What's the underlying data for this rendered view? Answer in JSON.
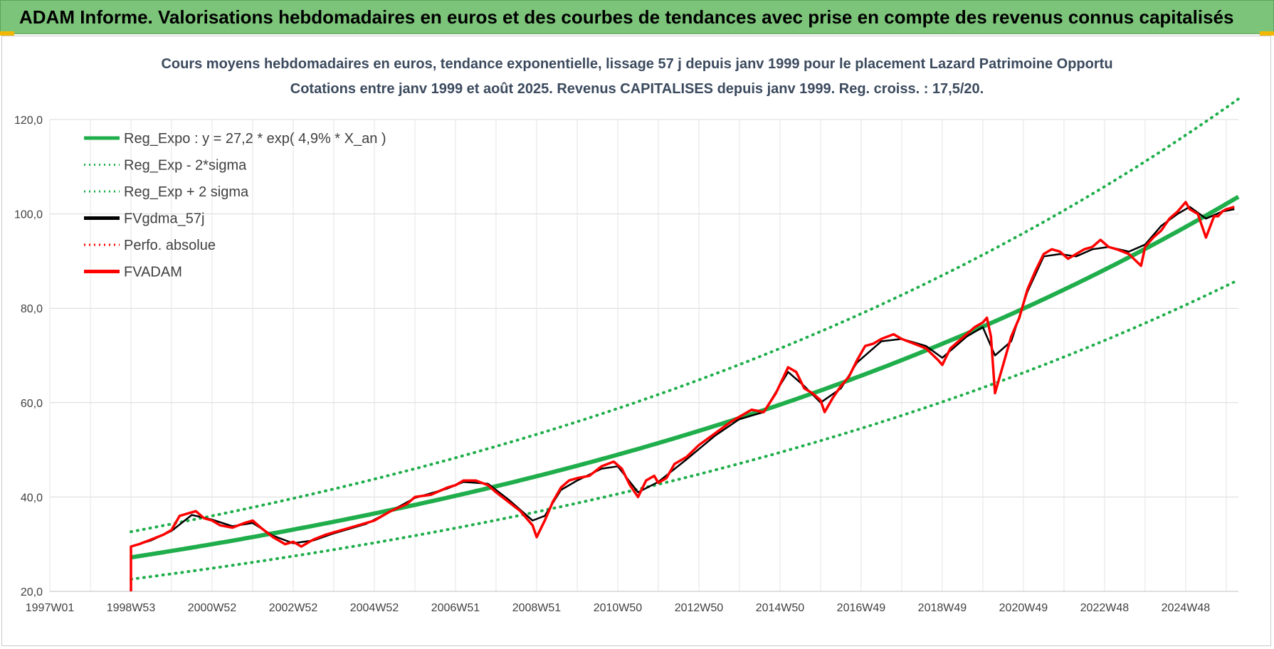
{
  "banner": {
    "title": "ADAM Informe. Valorisations hebdomadaires en euros et des courbes de tendances avec prise en compte des revenus connus capitalisés"
  },
  "colors": {
    "banner": "#7cc47a",
    "regression": "#1fae4b",
    "smoothed": "#000000",
    "price": "#ff0000",
    "grid": "#d9d9d9"
  },
  "chart_data": {
    "type": "line",
    "title": "Cours moyens hebdomadaires en euros, tendance exponentielle, lissage 57 j depuis janv 1999 pour le placement Lazard Patrimoine Opportu",
    "subtitle": "Cotations entre janv 1999 et août 2025.  Revenus CAPITALISES  depuis janv 1999. Reg.  croiss. : 17,5/20.",
    "xlabel": "",
    "ylabel": "",
    "ylim": [
      20,
      120
    ],
    "xlim": [
      1997.0,
      2026.3
    ],
    "y_ticks": [
      "20,0",
      "40,0",
      "60,0",
      "80,0",
      "100,0",
      "120,0"
    ],
    "x_ticks": [
      {
        "label": "1997W01",
        "x": 1997.0
      },
      {
        "label": "1998W53",
        "x": 1999.0
      },
      {
        "label": "2000W52",
        "x": 2001.0
      },
      {
        "label": "2002W52",
        "x": 2003.0
      },
      {
        "label": "2004W52",
        "x": 2005.0
      },
      {
        "label": "2006W51",
        "x": 2007.0
      },
      {
        "label": "2008W51",
        "x": 2009.0
      },
      {
        "label": "2010W50",
        "x": 2011.0
      },
      {
        "label": "2012W50",
        "x": 2013.0
      },
      {
        "label": "2014W50",
        "x": 2015.0
      },
      {
        "label": "2016W49",
        "x": 2017.0
      },
      {
        "label": "2018W49",
        "x": 2019.0
      },
      {
        "label": "2020W49",
        "x": 2021.0
      },
      {
        "label": "2022W48",
        "x": 2023.0
      },
      {
        "label": "2024W48",
        "x": 2025.0
      }
    ],
    "grid": true,
    "legend_position": "top-left",
    "legend": [
      {
        "label": "Reg_Expo : y = 27,2 * exp( 4,9% *  X_an )",
        "style": "solid",
        "color": "#1fae4b"
      },
      {
        "label": "Reg_Exp - 2*sigma",
        "style": "dotted",
        "color": "#1fae4b"
      },
      {
        "label": "Reg_Exp + 2 sigma",
        "style": "dotted",
        "color": "#1fae4b"
      },
      {
        "label": "FVgdma_57j",
        "style": "solid",
        "color": "#000000"
      },
      {
        "label": "Perfo. absolue",
        "style": "dotted",
        "color": "#ff0000"
      },
      {
        "label": "FVADAM",
        "style": "solid",
        "color": "#ff0000"
      }
    ],
    "regression": {
      "name": "Reg_Expo",
      "a": 27.2,
      "rate": 0.049,
      "x0": 1999.0,
      "x1": 2026.3,
      "sigma_factor_upper": 1.2,
      "sigma_factor_lower": 0.83
    },
    "series": [
      {
        "name": "FVADAM",
        "x": [
          1999.0,
          1999.0,
          1999.2,
          1999.5,
          1999.8,
          2000.0,
          2000.2,
          2000.4,
          2000.6,
          2000.8,
          2001.0,
          2001.2,
          2001.5,
          2001.8,
          2002.0,
          2002.2,
          2002.5,
          2002.8,
          2003.0,
          2003.2,
          2003.5,
          2003.8,
          2004.0,
          2004.4,
          2004.8,
          2005.0,
          2005.4,
          2005.8,
          2006.0,
          2006.4,
          2006.8,
          2007.0,
          2007.2,
          2007.5,
          2007.8,
          2008.0,
          2008.3,
          2008.6,
          2008.9,
          2009.0,
          2009.2,
          2009.4,
          2009.6,
          2009.8,
          2010.0,
          2010.3,
          2010.6,
          2010.9,
          2011.1,
          2011.3,
          2011.5,
          2011.7,
          2011.9,
          2012.0,
          2012.2,
          2012.4,
          2012.7,
          2013.0,
          2013.4,
          2013.8,
          2014.0,
          2014.3,
          2014.6,
          2014.9,
          2015.2,
          2015.4,
          2015.6,
          2015.8,
          2016.0,
          2016.1,
          2016.3,
          2016.5,
          2016.7,
          2016.9,
          2017.1,
          2017.3,
          2017.5,
          2017.8,
          2018.0,
          2018.3,
          2018.6,
          2018.9,
          2019.0,
          2019.2,
          2019.4,
          2019.6,
          2019.8,
          2020.0,
          2020.1,
          2020.2,
          2020.3,
          2020.5,
          2020.7,
          2020.9,
          2021.1,
          2021.3,
          2021.5,
          2021.7,
          2021.9,
          2022.1,
          2022.3,
          2022.5,
          2022.7,
          2022.9,
          2023.1,
          2023.3,
          2023.6,
          2023.9,
          2024.0,
          2024.2,
          2024.4,
          2024.6,
          2024.8,
          2025.0,
          2025.1,
          2025.3,
          2025.5,
          2025.7,
          2025.8,
          2025.9,
          2026.0,
          2026.2
        ],
        "values": [
          20.0,
          29.5,
          30.0,
          31.0,
          32.0,
          33.0,
          36.0,
          36.5,
          37.0,
          35.5,
          35.0,
          34.0,
          33.5,
          34.5,
          35.0,
          33.5,
          31.5,
          30.0,
          30.5,
          29.5,
          31.0,
          32.0,
          32.5,
          33.5,
          34.5,
          35.0,
          37.0,
          38.5,
          40.0,
          40.5,
          42.0,
          42.5,
          43.5,
          43.5,
          42.5,
          41.0,
          39.0,
          37.0,
          34.0,
          31.5,
          35.0,
          39.0,
          42.0,
          43.5,
          44.0,
          44.5,
          46.5,
          47.5,
          46.0,
          42.5,
          40.0,
          43.5,
          44.5,
          43.0,
          44.0,
          47.0,
          48.5,
          51.0,
          53.5,
          56.0,
          57.0,
          58.5,
          58.0,
          62.0,
          67.5,
          66.5,
          63.0,
          62.0,
          60.5,
          58.0,
          61.0,
          63.5,
          65.5,
          69.0,
          72.0,
          72.5,
          73.5,
          74.5,
          73.5,
          72.5,
          71.5,
          69.0,
          68.0,
          71.5,
          73.0,
          74.5,
          76.0,
          77.0,
          78.0,
          74.0,
          62.0,
          68.0,
          74.0,
          78.0,
          84.0,
          88.0,
          91.5,
          92.5,
          92.0,
          90.5,
          91.5,
          92.5,
          93.0,
          94.5,
          93.0,
          92.5,
          91.5,
          89.0,
          93.0,
          95.0,
          96.5,
          99.0,
          100.5,
          102.5,
          101.0,
          100.0,
          95.0,
          99.5,
          99.5,
          100.5,
          101.0,
          101.5
        ]
      },
      {
        "name": "FVgdma_57j",
        "x": [
          1999.0,
          1999.5,
          2000.0,
          2000.5,
          2001.0,
          2001.5,
          2002.0,
          2002.5,
          2003.0,
          2003.5,
          2004.0,
          2004.8,
          2005.4,
          2006.0,
          2006.8,
          2007.2,
          2007.8,
          2008.3,
          2008.9,
          2009.2,
          2009.6,
          2010.0,
          2010.6,
          2011.0,
          2011.5,
          2012.0,
          2012.7,
          2013.4,
          2014.0,
          2014.6,
          2015.2,
          2015.6,
          2016.0,
          2016.5,
          2016.9,
          2017.5,
          2018.0,
          2018.6,
          2019.0,
          2019.6,
          2020.0,
          2020.3,
          2020.7,
          2021.1,
          2021.5,
          2021.9,
          2022.3,
          2022.7,
          2023.1,
          2023.6,
          2024.0,
          2024.4,
          2024.8,
          2025.1,
          2025.5,
          2025.9,
          2026.2
        ],
        "values": [
          29.5,
          30.8,
          32.8,
          36.2,
          35.2,
          33.8,
          34.5,
          31.8,
          30.2,
          30.8,
          32.3,
          34.3,
          37.0,
          39.8,
          41.8,
          43.2,
          42.8,
          39.5,
          35.0,
          36.0,
          41.5,
          43.5,
          46.0,
          46.5,
          41.0,
          43.2,
          48.0,
          53.0,
          56.5,
          58.0,
          66.5,
          63.5,
          60.0,
          63.0,
          68.5,
          73.0,
          73.5,
          72.0,
          69.5,
          74.0,
          76.0,
          70.0,
          73.0,
          83.5,
          91.0,
          91.5,
          91.0,
          92.5,
          93.0,
          92.0,
          93.5,
          97.5,
          100.0,
          101.5,
          99.0,
          100.5,
          101.0
        ]
      }
    ]
  }
}
